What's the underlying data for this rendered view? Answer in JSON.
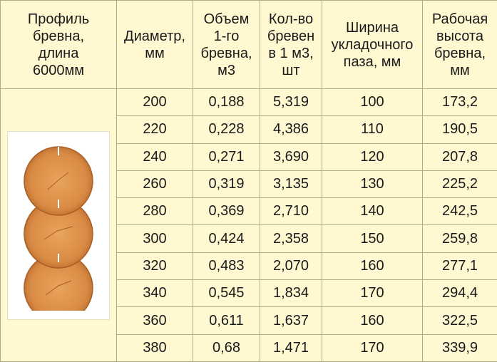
{
  "headers": {
    "profile": [
      "Профиль",
      "бревна,",
      "длина",
      "6000мм"
    ],
    "diameter": [
      "Диаметр,",
      "мм"
    ],
    "volume": [
      "Объем",
      "1-го",
      "бревна,",
      "м3"
    ],
    "count": [
      "Кол-во",
      "бревен",
      "в 1 м3,",
      "шт"
    ],
    "groove_width": [
      "Ширина",
      "укладочного",
      "паза, мм"
    ],
    "working_height": [
      "Рабочая",
      "высота",
      "бревна,",
      "мм"
    ]
  },
  "rows": [
    {
      "diameter": "200",
      "volume": "0,188",
      "count": "5,319",
      "groove": "100",
      "height": "173,2"
    },
    {
      "diameter": "220",
      "volume": "0,228",
      "count": "4,386",
      "groove": "110",
      "height": "190,5"
    },
    {
      "diameter": "240",
      "volume": "0,271",
      "count": "3,690",
      "groove": "120",
      "height": "207,8"
    },
    {
      "diameter": "260",
      "volume": "0,319",
      "count": "3,135",
      "groove": "130",
      "height": "225,2"
    },
    {
      "diameter": "280",
      "volume": "0,369",
      "count": "2,710",
      "groove": "140",
      "height": "242,5"
    },
    {
      "diameter": "300",
      "volume": "0,424",
      "count": "2,358",
      "groove": "150",
      "height": "259,8"
    },
    {
      "diameter": "320",
      "volume": "0,483",
      "count": "2,070",
      "groove": "160",
      "height": "277,1"
    },
    {
      "diameter": "340",
      "volume": "0,545",
      "count": "1,834",
      "groove": "170",
      "height": "294,4"
    },
    {
      "diameter": "360",
      "volume": "0,611",
      "count": "1,637",
      "groove": "160",
      "height": "322,5"
    },
    {
      "diameter": "380",
      "volume": "0,68",
      "count": "1,471",
      "groove": "170",
      "height": "339,9"
    }
  ],
  "colors": {
    "background": "#fff8d0",
    "border": "#b3aa8a",
    "log_wood": "#d98b45",
    "log_edge": "#b8692b"
  },
  "illustration": "stacked-round-logs-profile"
}
